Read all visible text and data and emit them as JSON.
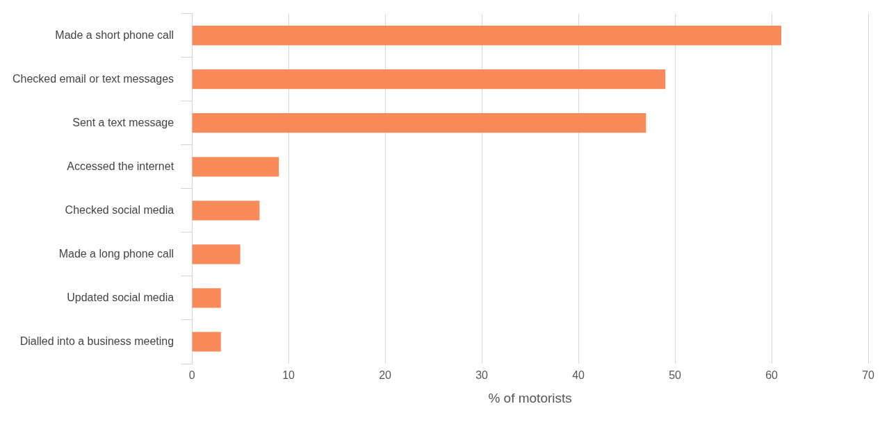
{
  "chart_data": {
    "type": "bar",
    "orientation": "horizontal",
    "xlabel": "% of motorists",
    "categories": [
      "Made a short phone call",
      "Checked email or text messages",
      "Sent a text message",
      "Accessed the internet",
      "Checked social media",
      "Made a long phone call",
      "Updated social media",
      "Dialled into a business meeting"
    ],
    "values": [
      61,
      49,
      47,
      9,
      7,
      5,
      3,
      3
    ],
    "color": "#f98b5a",
    "xlim": [
      0,
      70
    ],
    "xticks": [
      0,
      10,
      20,
      30,
      40,
      50,
      60,
      70
    ],
    "grid": "x",
    "legend": false
  }
}
